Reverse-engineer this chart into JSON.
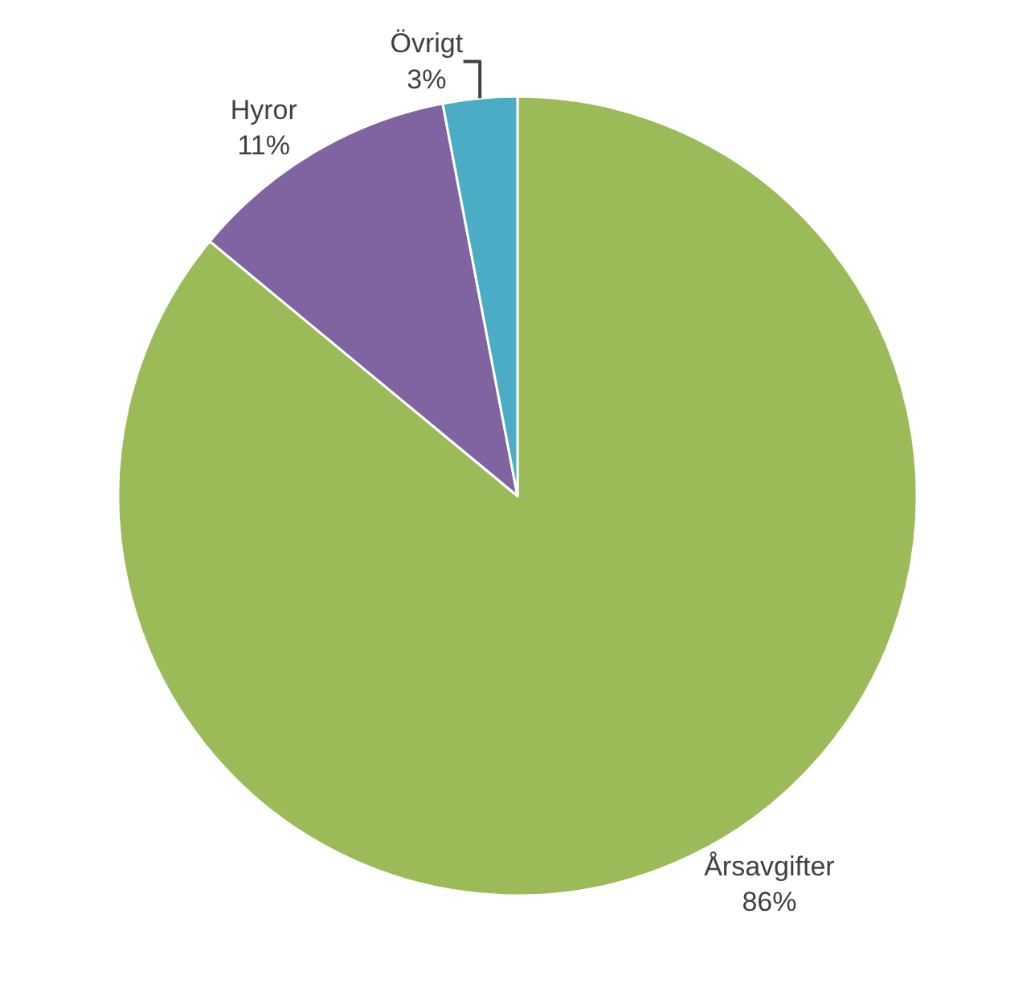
{
  "chart_data": {
    "type": "pie",
    "categories": [
      "Årsavgifter",
      "Hyror",
      "Övrigt"
    ],
    "values": [
      86,
      11,
      3
    ],
    "value_labels": [
      "86%",
      "11%",
      "3%"
    ],
    "colors": [
      "#9bbb59",
      "#8064a2",
      "#4bacc6"
    ],
    "legend": false
  }
}
